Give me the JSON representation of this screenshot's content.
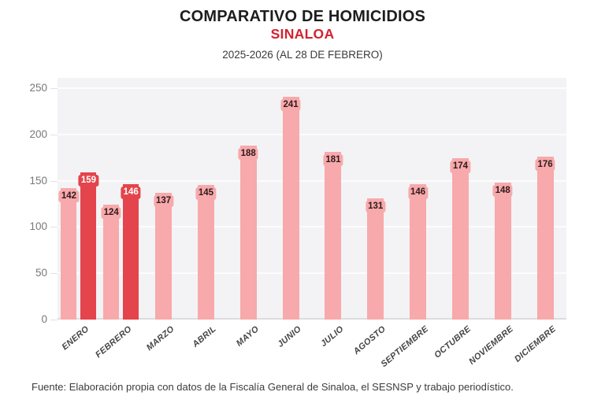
{
  "header": {
    "title": "COMPARATIVO DE HOMICIDIOS",
    "subtitle": "SINALOA",
    "period": "2025-2026 (AL 28 DE FEBRERO)"
  },
  "footer": {
    "source": "Fuente: Elaboración propia con datos de la Fiscalía General de Sinaloa, el SESNSP y trabajo periodístico."
  },
  "colors": {
    "title_text": "#1d1d1f",
    "subtitle_red": "#d42230",
    "bar_2025_pink": "#f8a9ab",
    "bar_2026_red": "#e4444b",
    "bar_label_dark": "#2e1a1c",
    "bar_label_light": "#ffffff",
    "plot_bg": "#f3f3f5",
    "gridline": "#fcfcfd",
    "baseline": "#dcdcde",
    "axis_text": "#78787a",
    "month_text": "#454547"
  },
  "chart_data": {
    "type": "bar",
    "title": "COMPARATIVO DE HOMICIDIOS — SINALOA — 2025-2026 (AL 28 DE FEBRERO)",
    "categories": [
      "ENERO",
      "FEBRERO",
      "MARZO",
      "ABRIL",
      "MAYO",
      "JUNIO",
      "JULIO",
      "AGOSTO",
      "SEPTIEMBRE",
      "OCTUBRE",
      "NOVIEMBRE",
      "DICIEMBRE"
    ],
    "series": [
      {
        "name": "2025",
        "color_key": "bar_2025_pink",
        "label_color_key": "bar_label_dark",
        "values": [
          142,
          124,
          137,
          145,
          188,
          241,
          181,
          131,
          146,
          174,
          148,
          176
        ]
      },
      {
        "name": "2026",
        "color_key": "bar_2026_red",
        "label_color_key": "bar_label_light",
        "values": [
          159,
          146,
          null,
          null,
          null,
          null,
          null,
          null,
          null,
          null,
          null,
          null
        ]
      }
    ],
    "ylim": [
      0,
      250
    ],
    "yticks": [
      0,
      50,
      100,
      150,
      200,
      250
    ],
    "grid": true,
    "legend": "none",
    "value_labels": true
  }
}
